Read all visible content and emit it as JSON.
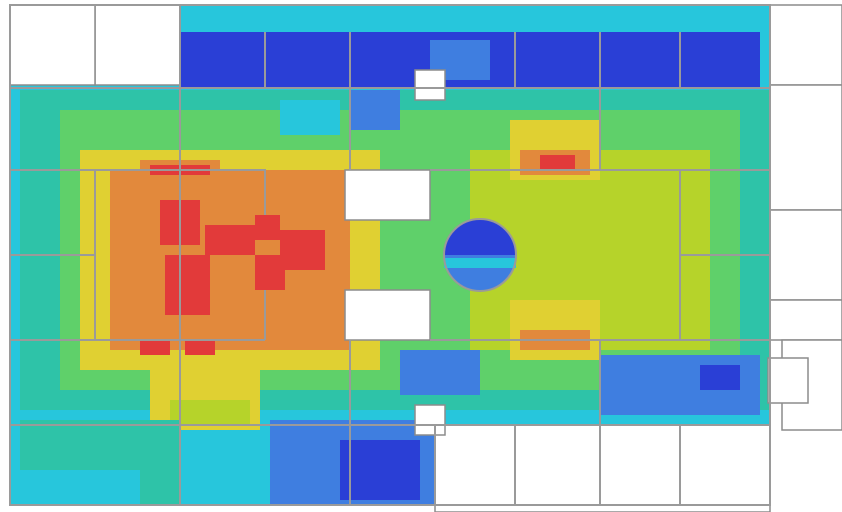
{
  "map": {
    "type": "floor-plan-heatmap",
    "legend": "none",
    "palette": {
      "dark_blue": "#2a3fd6",
      "blue": "#3f7ee0",
      "cyan": "#27c6dc",
      "teal": "#2ec3a8",
      "green": "#5fd06a",
      "yellow_green": "#b6d32a",
      "yellow": "#e0d032",
      "orange": "#e2893c",
      "red": "#e23a3a"
    },
    "background": "#ffffff",
    "wall_color": "#9a9a9a"
  }
}
